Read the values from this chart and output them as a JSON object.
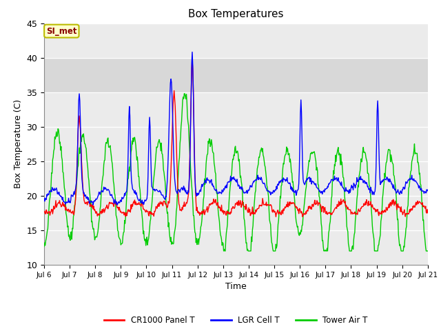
{
  "title": "Box Temperatures",
  "xlabel": "Time",
  "ylabel": "Box Temperature (C)",
  "ylim": [
    10,
    45
  ],
  "xlim": [
    0,
    360
  ],
  "background_color": "#ffffff",
  "plot_bg_color": "#ebebeb",
  "shaded_band_y1": 35,
  "shaded_band_y2": 40,
  "shaded_band_color": "#d8d8d8",
  "grid_color": "#ffffff",
  "annotation_text": "SI_met",
  "annotation_bg": "#ffffcc",
  "annotation_border": "#bbbb00",
  "annotation_text_color": "#880000",
  "legend_labels": [
    "CR1000 Panel T",
    "LGR Cell T",
    "Tower Air T"
  ],
  "legend_colors": [
    "#ff0000",
    "#0000ff",
    "#00cc00"
  ],
  "xtick_labels": [
    "Jul 6",
    "Jul 7",
    "Jul 8",
    "Jul 9",
    "Jul 10",
    "Jul 11",
    "Jul 12",
    "Jul 13",
    "Jul 14",
    "Jul 15",
    "Jul 16",
    "Jul 17",
    "Jul 18",
    "Jul 19",
    "Jul 20",
    "Jul 21"
  ],
  "xtick_positions": [
    0,
    24,
    48,
    72,
    96,
    120,
    144,
    168,
    192,
    216,
    240,
    264,
    288,
    312,
    336,
    360
  ],
  "ytick_positions": [
    10,
    15,
    20,
    25,
    30,
    35,
    40,
    45
  ]
}
